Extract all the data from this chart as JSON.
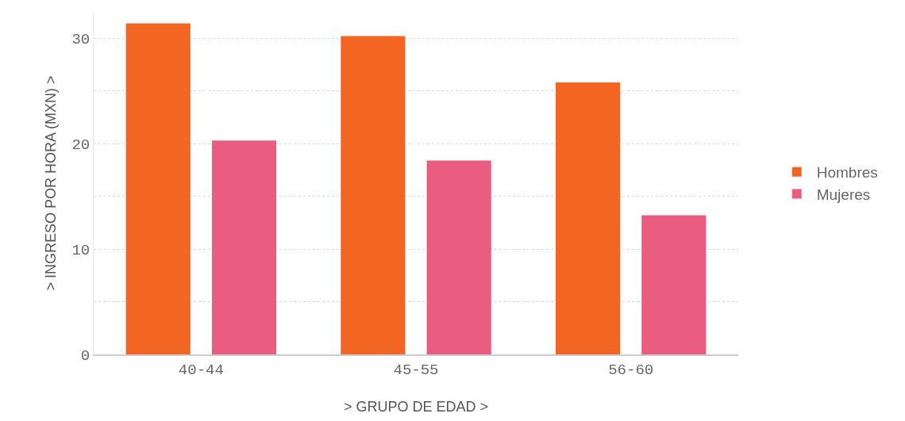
{
  "chart_data": {
    "type": "bar",
    "xlabel": "> GRUPO DE EDAD >",
    "ylabel": "> INGRESO POR HORA (MXN) >",
    "categories": [
      "40-44",
      "45-55",
      "56-60"
    ],
    "series": [
      {
        "name": "Hombres",
        "color": "#f26522",
        "values": [
          31.4,
          30.2,
          25.8
        ]
      },
      {
        "name": "Mujeres",
        "color": "#e95d80",
        "values": [
          20.3,
          18.4,
          13.2
        ]
      }
    ],
    "ylim": [
      0,
      32.5
    ],
    "yticks": [
      0,
      {
        "value": 5,
        "label": null
      },
      10,
      {
        "value": 15,
        "label": null
      },
      20,
      {
        "value": 25,
        "label": null
      },
      30
    ],
    "grid": "y",
    "legend": "right"
  }
}
